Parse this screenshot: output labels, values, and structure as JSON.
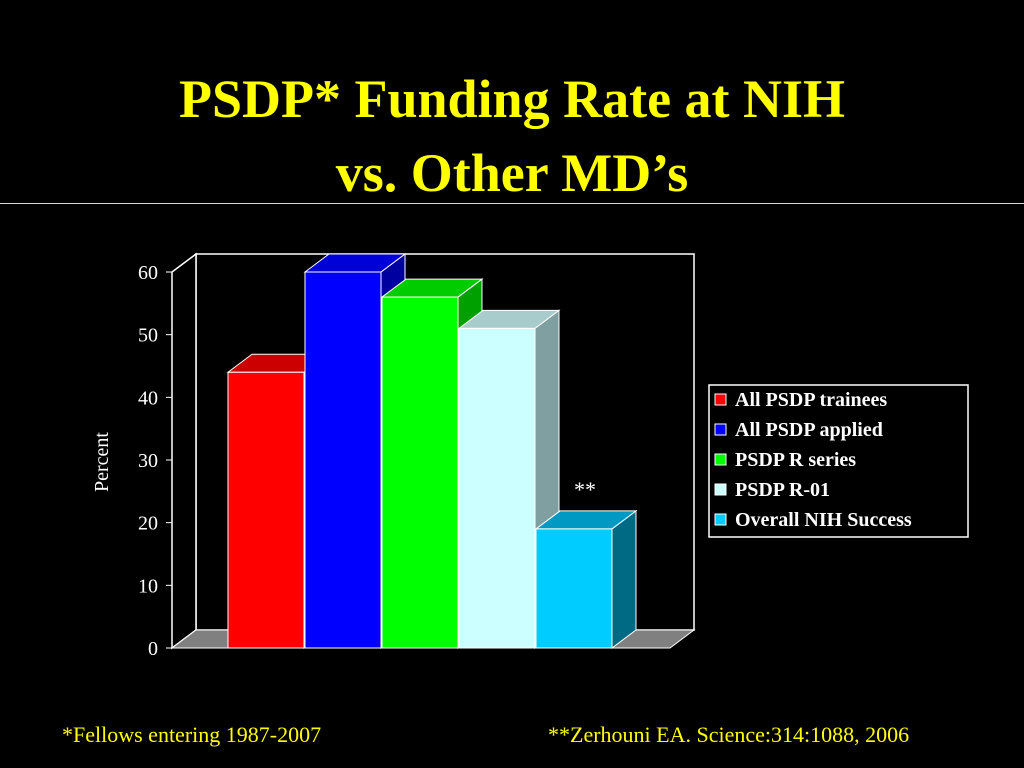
{
  "slide": {
    "title_line1": "PSDP* Funding Rate at NIH",
    "title_line2": "vs. Other MD’s",
    "footnote_left": "*Fellows entering 1987-2007",
    "footnote_right": "**Zerhouni EA. Science:314:1088, 2006"
  },
  "chart_data": {
    "type": "bar",
    "style": "3d-clustered",
    "ylabel": "Percent",
    "ylim": [
      0,
      60
    ],
    "yticks": [
      0,
      10,
      20,
      30,
      40,
      50,
      60
    ],
    "categories": [
      ""
    ],
    "series": [
      {
        "name": "All PSDP trainees",
        "values": [
          44
        ],
        "color": "#ff0000",
        "side": "#b30000",
        "top": "#cc0000"
      },
      {
        "name": "All PSDP applied",
        "values": [
          60
        ],
        "color": "#0000ff",
        "side": "#0000a0",
        "top": "#0000d8"
      },
      {
        "name": "PSDP R series",
        "values": [
          56
        ],
        "color": "#00ff00",
        "side": "#00a000",
        "top": "#00cc00"
      },
      {
        "name": "PSDP R-01",
        "values": [
          51
        ],
        "color": "#ccffff",
        "side": "#7f9fa0",
        "top": "#a8cccc"
      },
      {
        "name": "Overall NIH Success",
        "values": [
          19
        ],
        "color": "#00ccff",
        "side": "#006a85",
        "top": "#0099c4"
      }
    ],
    "annotations": [
      {
        "text": "**",
        "series": "Overall NIH Success"
      }
    ],
    "grid": false,
    "legend": "right"
  }
}
